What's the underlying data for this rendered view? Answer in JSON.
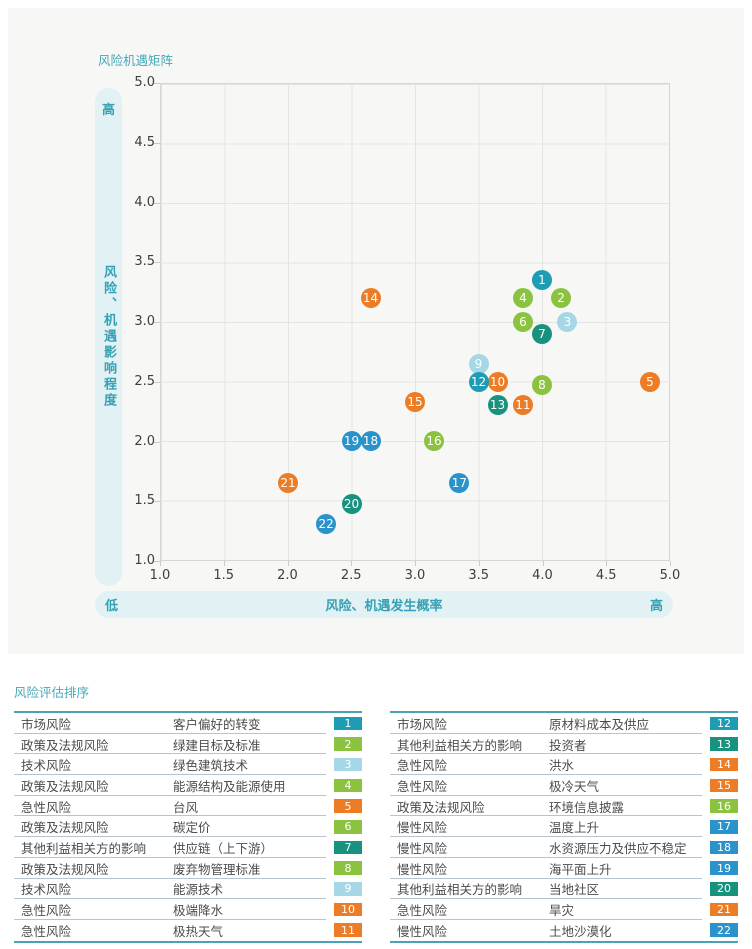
{
  "chart": {
    "title": "风险机遇矩阵",
    "impact_axis": {
      "label": "风险、机遇影响程度",
      "top_label": "高"
    },
    "probability_axis": {
      "label": "风险、机遇发生概率",
      "left_label": "低",
      "right_label": "高"
    },
    "x_ticks": [
      "1.0",
      "1.5",
      "2.0",
      "2.5",
      "3.0",
      "3.5",
      "4.0",
      "4.5",
      "5.0"
    ],
    "y_ticks": [
      "5.0",
      "4.5",
      "4.0",
      "3.5",
      "3.0",
      "2.5",
      "2.0",
      "1.5",
      "1.0"
    ]
  },
  "category_colors": {
    "市场风险": "#1d9cb4",
    "政策及法规风险": "#8bc341",
    "技术风险": "#a6d7e7",
    "急性风险": "#ec7c25",
    "其他利益相关方的影响": "#19917f",
    "慢性风险": "#2b93cb"
  },
  "chart_data": {
    "type": "scatter",
    "title": "风险机遇矩阵",
    "xlabel": "风险、机遇发生概率",
    "ylabel": "风险、机遇影响程度",
    "xlim": [
      1.0,
      5.0
    ],
    "ylim": [
      1.0,
      5.0
    ],
    "grid": true,
    "points": [
      {
        "id": 1,
        "x": 4.0,
        "y": 3.35,
        "category": "市场风险",
        "item": "客户偏好的转变"
      },
      {
        "id": 2,
        "x": 4.15,
        "y": 3.2,
        "category": "政策及法规风险",
        "item": "绿建目标及标准"
      },
      {
        "id": 3,
        "x": 4.2,
        "y": 3.0,
        "category": "技术风险",
        "item": "绿色建筑技术"
      },
      {
        "id": 4,
        "x": 3.85,
        "y": 3.2,
        "category": "政策及法规风险",
        "item": "能源结构及能源使用"
      },
      {
        "id": 5,
        "x": 4.85,
        "y": 2.5,
        "category": "急性风险",
        "item": "台风"
      },
      {
        "id": 6,
        "x": 3.85,
        "y": 3.0,
        "category": "政策及法规风险",
        "item": "碳定价"
      },
      {
        "id": 7,
        "x": 4.0,
        "y": 2.9,
        "category": "其他利益相关方的影响",
        "item": "供应链（上下游）"
      },
      {
        "id": 8,
        "x": 4.0,
        "y": 2.47,
        "category": "政策及法规风险",
        "item": "废弃物管理标准"
      },
      {
        "id": 9,
        "x": 3.5,
        "y": 2.65,
        "category": "技术风险",
        "item": "能源技术"
      },
      {
        "id": 10,
        "x": 3.65,
        "y": 2.5,
        "category": "急性风险",
        "item": "极端降水"
      },
      {
        "id": 11,
        "x": 3.85,
        "y": 2.3,
        "category": "急性风险",
        "item": "极热天气"
      },
      {
        "id": 12,
        "x": 3.5,
        "y": 2.5,
        "category": "市场风险",
        "item": "原材料成本及供应"
      },
      {
        "id": 13,
        "x": 3.65,
        "y": 2.3,
        "category": "其他利益相关方的影响",
        "item": "投资者"
      },
      {
        "id": 14,
        "x": 2.65,
        "y": 3.2,
        "category": "急性风险",
        "item": "洪水"
      },
      {
        "id": 15,
        "x": 3.0,
        "y": 2.33,
        "category": "急性风险",
        "item": "极冷天气"
      },
      {
        "id": 16,
        "x": 3.15,
        "y": 2.0,
        "category": "政策及法规风险",
        "item": "环境信息披露"
      },
      {
        "id": 17,
        "x": 3.35,
        "y": 1.65,
        "category": "慢性风险",
        "item": "温度上升"
      },
      {
        "id": 18,
        "x": 2.65,
        "y": 2.0,
        "category": "慢性风险",
        "item": "水资源压力及供应不稳定"
      },
      {
        "id": 19,
        "x": 2.5,
        "y": 2.0,
        "category": "慢性风险",
        "item": "海平面上升"
      },
      {
        "id": 20,
        "x": 2.5,
        "y": 1.47,
        "category": "其他利益相关方的影响",
        "item": "当地社区"
      },
      {
        "id": 21,
        "x": 2.0,
        "y": 1.65,
        "category": "急性风险",
        "item": "旱灾"
      },
      {
        "id": 22,
        "x": 2.3,
        "y": 1.3,
        "category": "慢性风险",
        "item": "土地沙漠化"
      }
    ]
  },
  "ranking": {
    "title": "风险评估排序",
    "left_rows": [
      {
        "rank": 1,
        "category": "市场风险",
        "item": "客户偏好的转变"
      },
      {
        "rank": 2,
        "category": "政策及法规风险",
        "item": "绿建目标及标准"
      },
      {
        "rank": 3,
        "category": "技术风险",
        "item": "绿色建筑技术"
      },
      {
        "rank": 4,
        "category": "政策及法规风险",
        "item": "能源结构及能源使用"
      },
      {
        "rank": 5,
        "category": "急性风险",
        "item": "台风"
      },
      {
        "rank": 6,
        "category": "政策及法规风险",
        "item": "碳定价"
      },
      {
        "rank": 7,
        "category": "其他利益相关方的影响",
        "item": "供应链（上下游）"
      },
      {
        "rank": 8,
        "category": "政策及法规风险",
        "item": "废弃物管理标准"
      },
      {
        "rank": 9,
        "category": "技术风险",
        "item": "能源技术"
      },
      {
        "rank": 10,
        "category": "急性风险",
        "item": "极端降水"
      },
      {
        "rank": 11,
        "category": "急性风险",
        "item": "极热天气"
      }
    ],
    "right_rows": [
      {
        "rank": 12,
        "category": "市场风险",
        "item": "原材料成本及供应"
      },
      {
        "rank": 13,
        "category": "其他利益相关方的影响",
        "item": "投资者"
      },
      {
        "rank": 14,
        "category": "急性风险",
        "item": "洪水"
      },
      {
        "rank": 15,
        "category": "急性风险",
        "item": "极冷天气"
      },
      {
        "rank": 16,
        "category": "政策及法规风险",
        "item": "环境信息披露"
      },
      {
        "rank": 17,
        "category": "慢性风险",
        "item": "温度上升"
      },
      {
        "rank": 18,
        "category": "慢性风险",
        "item": "水资源压力及供应不稳定"
      },
      {
        "rank": 19,
        "category": "慢性风险",
        "item": "海平面上升"
      },
      {
        "rank": 20,
        "category": "其他利益相关方的影响",
        "item": "当地社区"
      },
      {
        "rank": 21,
        "category": "急性风险",
        "item": "旱灾"
      },
      {
        "rank": 22,
        "category": "慢性风险",
        "item": "土地沙漠化"
      }
    ]
  }
}
